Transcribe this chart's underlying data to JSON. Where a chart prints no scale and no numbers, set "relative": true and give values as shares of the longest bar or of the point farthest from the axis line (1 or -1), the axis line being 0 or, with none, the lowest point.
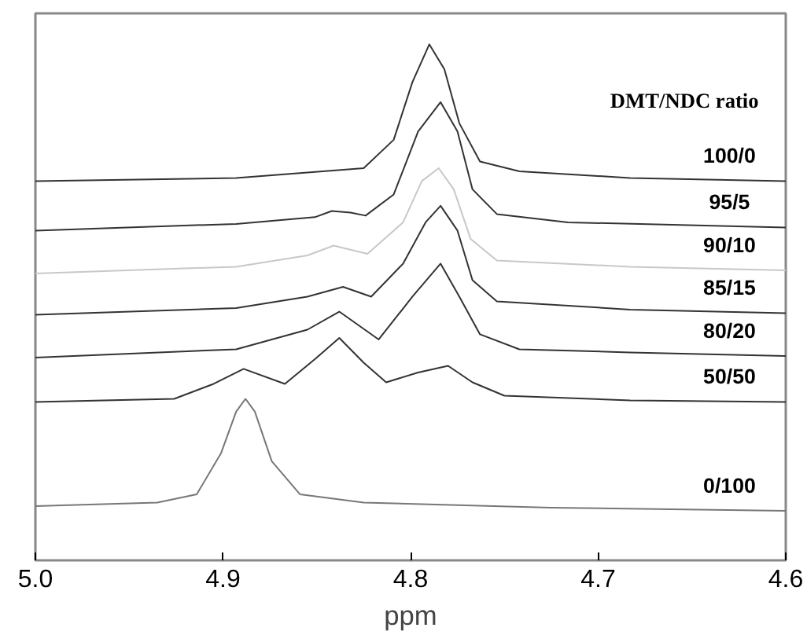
{
  "chart_data": {
    "type": "line",
    "relative": true,
    "xlabel": "ppm",
    "legend_title": "DMT/NDC ratio",
    "xlim": [
      5.0,
      4.6
    ],
    "xticks": [
      {
        "value": 5.0,
        "label": "5.0"
      },
      4.9,
      4.8,
      4.7,
      4.6
    ],
    "grid": false,
    "tick_labels": "x",
    "line_style": "solid",
    "marker": "none",
    "series": [
      {
        "name": "100/0",
        "color": "#333333",
        "x": [
          5.0,
          4.893,
          4.825,
          4.809,
          4.799,
          4.79,
          4.782,
          4.774,
          4.763,
          4.742,
          4.683,
          4.6
        ],
        "values": [
          0.735,
          0.741,
          0.76,
          0.815,
          0.927,
          1.0,
          0.952,
          0.847,
          0.773,
          0.754,
          0.741,
          0.735
        ]
      },
      {
        "name": "95/5",
        "color": "#333333",
        "x": [
          5.0,
          4.893,
          4.851,
          4.842,
          4.832,
          4.824,
          4.809,
          4.796,
          4.784,
          4.775,
          4.767,
          4.754,
          4.716,
          4.6
        ],
        "values": [
          0.639,
          0.652,
          0.665,
          0.677,
          0.674,
          0.668,
          0.709,
          0.831,
          0.888,
          0.831,
          0.719,
          0.671,
          0.655,
          0.645
        ]
      },
      {
        "name": "90/10",
        "color": "#c8c8c8",
        "x": [
          5.0,
          4.893,
          4.855,
          4.841,
          4.823,
          4.804,
          4.794,
          4.785,
          4.777,
          4.768,
          4.754,
          4.683,
          4.6
        ],
        "values": [
          0.556,
          0.569,
          0.591,
          0.61,
          0.594,
          0.655,
          0.735,
          0.76,
          0.719,
          0.623,
          0.581,
          0.569,
          0.562
        ]
      },
      {
        "name": "85/15",
        "color": "#333333",
        "x": [
          5.0,
          4.893,
          4.855,
          4.836,
          4.821,
          4.804,
          4.792,
          4.784,
          4.775,
          4.767,
          4.754,
          4.683,
          4.6
        ],
        "values": [
          0.476,
          0.489,
          0.511,
          0.53,
          0.511,
          0.575,
          0.655,
          0.687,
          0.639,
          0.543,
          0.502,
          0.486,
          0.479
        ]
      },
      {
        "name": "80/20",
        "color": "#333333",
        "x": [
          5.0,
          4.893,
          4.855,
          4.838,
          4.817,
          4.799,
          4.784,
          4.774,
          4.763,
          4.742,
          4.683,
          4.6
        ],
        "values": [
          0.393,
          0.409,
          0.447,
          0.482,
          0.428,
          0.511,
          0.575,
          0.511,
          0.438,
          0.409,
          0.403,
          0.396
        ]
      },
      {
        "name": "50/50",
        "color": "#333333",
        "x": [
          5.0,
          4.926,
          4.905,
          4.889,
          4.867,
          4.851,
          4.838,
          4.825,
          4.813,
          4.796,
          4.78,
          4.767,
          4.75,
          4.683,
          4.6
        ],
        "values": [
          0.307,
          0.313,
          0.342,
          0.371,
          0.342,
          0.39,
          0.431,
          0.383,
          0.345,
          0.364,
          0.377,
          0.345,
          0.319,
          0.31,
          0.307
        ]
      },
      {
        "name": "0/100",
        "color": "#777777",
        "x": [
          5.0,
          4.935,
          4.914,
          4.901,
          4.893,
          4.888,
          4.883,
          4.874,
          4.859,
          4.825,
          4.725,
          4.6
        ],
        "values": [
          0.105,
          0.112,
          0.128,
          0.208,
          0.288,
          0.313,
          0.288,
          0.192,
          0.128,
          0.112,
          0.102,
          0.096
        ]
      }
    ]
  }
}
